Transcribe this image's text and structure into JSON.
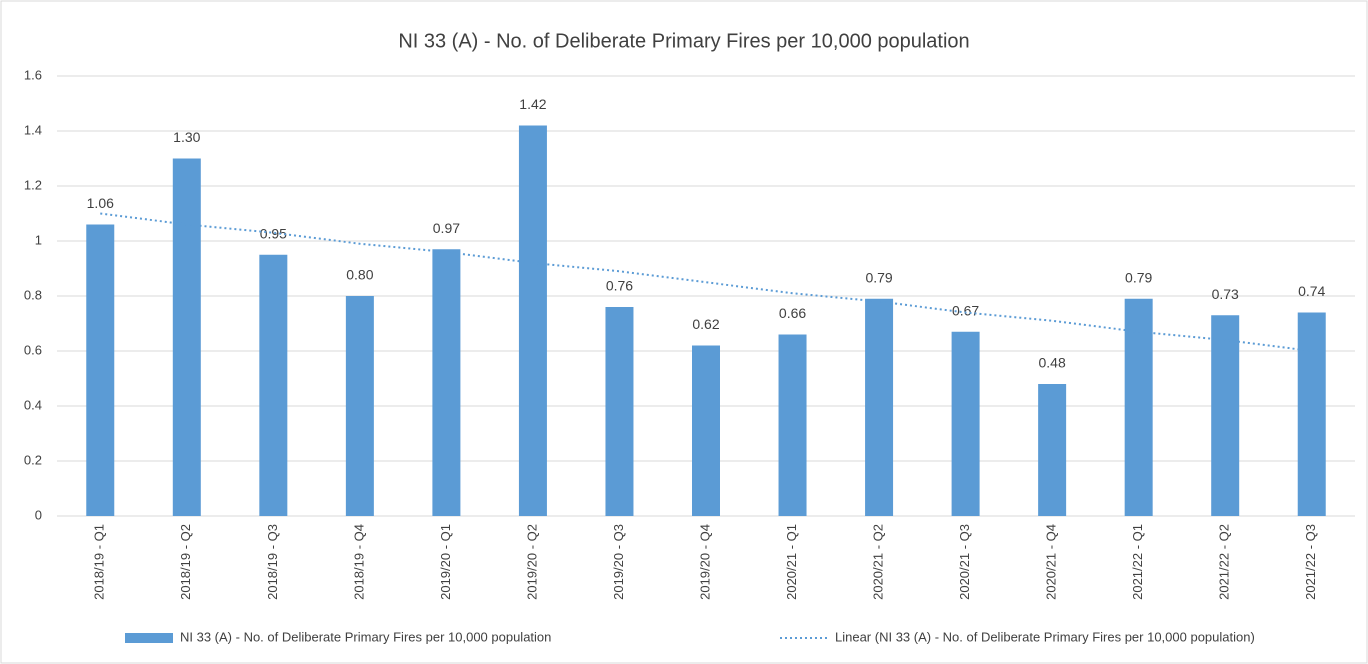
{
  "chart_data": {
    "type": "bar",
    "title": "NI 33 (A) - No. of Deliberate Primary Fires per 10,000 population",
    "categories": [
      "2018/19 - Q1",
      "2018/19 - Q2",
      "2018/19 - Q3",
      "2018/19 - Q4",
      "2019/20 - Q1",
      "2019/20 - Q2",
      "2019/20 - Q3",
      "2019/20 - Q4",
      "2020/21 - Q1",
      "2020/21 - Q2",
      "2020/21 - Q3",
      "2020/21 - Q4",
      "2021/22 - Q1",
      "2021/22 - Q2",
      "2021/22 - Q3"
    ],
    "series": [
      {
        "name": "NI 33 (A) - No. of Deliberate Primary Fires per 10,000 population",
        "color": "#5b9bd5",
        "values": [
          1.06,
          1.3,
          0.95,
          0.8,
          0.97,
          1.42,
          0.76,
          0.62,
          0.66,
          0.79,
          0.67,
          0.48,
          0.79,
          0.73,
          0.74
        ],
        "value_labels": [
          "1.06",
          "1.30",
          "0.95",
          "0.80",
          "0.97",
          "1.42",
          "0.76",
          "0.62",
          "0.66",
          "0.79",
          "0.67",
          "0.48",
          "0.79",
          "0.73",
          "0.74"
        ]
      },
      {
        "name": "Linear (NI 33 (A) - No. of Deliberate Primary Fires per 10,000 population)",
        "color": "#5b9bd5",
        "type": "line",
        "dashed": true,
        "values": [
          1.1,
          1.06,
          1.03,
          0.99,
          0.96,
          0.92,
          0.89,
          0.85,
          0.81,
          0.78,
          0.74,
          0.71,
          0.67,
          0.64,
          0.6
        ]
      }
    ],
    "ylim": [
      0,
      1.6
    ],
    "yticks": [
      0,
      0.2,
      0.4,
      0.6,
      0.8,
      1,
      1.2,
      1.4,
      1.6
    ],
    "grid": true,
    "legend": "bottom"
  }
}
